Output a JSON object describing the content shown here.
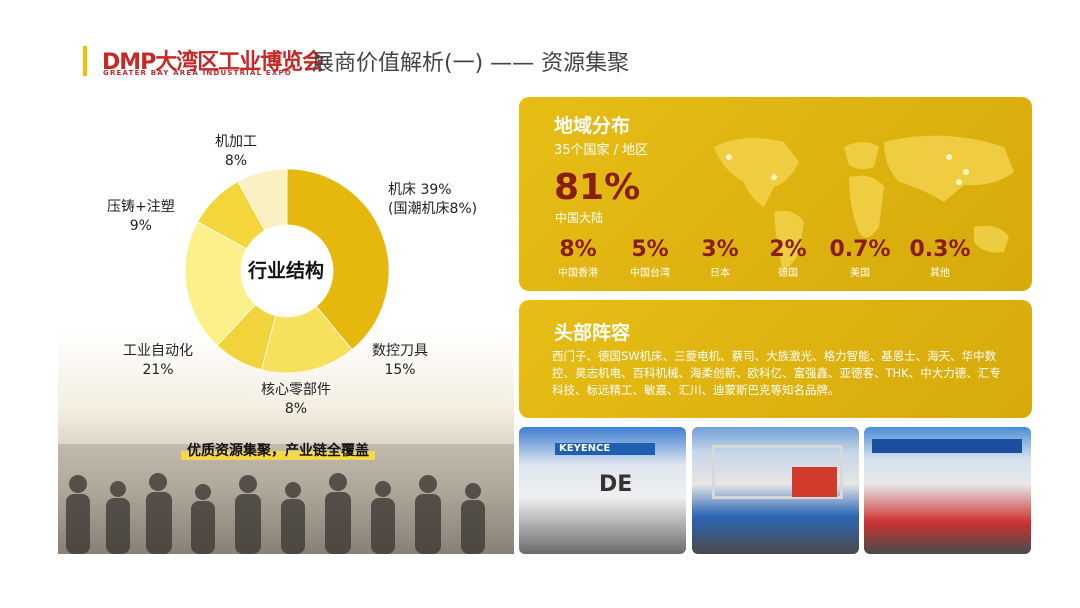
{
  "header": {
    "logo_main": "DMP大湾区工业博览会",
    "logo_sub": "GREATER BAY AREA INDUSTRIAL EXPO",
    "title": "展商价值解析(一) —— 资源集聚"
  },
  "industry": {
    "center_label": "行业结构",
    "labels": {
      "machining": {
        "name": "机加工",
        "pct": "8%"
      },
      "machine_tools": {
        "name": "机床 39%",
        "note": "(国潮机床8%)"
      },
      "die_casting": {
        "name": "压铸+注塑",
        "pct": "9%"
      },
      "cnc_tools": {
        "name": "数控刀具",
        "pct": "15%"
      },
      "automation": {
        "name": "工业自动化",
        "pct": "21%"
      },
      "components": {
        "name": "核心零部件",
        "pct": "8%"
      }
    },
    "tagline": "优质资源集聚，产业链全覆盖"
  },
  "chart_data": {
    "type": "pie",
    "categories": [
      "机床",
      "数控刀具",
      "核心零部件",
      "工业自动化",
      "压铸+注塑",
      "机加工"
    ],
    "values": [
      39,
      15,
      8,
      21,
      9,
      8
    ],
    "colors": [
      "#e6b70c",
      "#f7e15c",
      "#f1d43c",
      "#fcf08a",
      "#f5d63a",
      "#fbf0c2"
    ],
    "title": "行业结构"
  },
  "geo": {
    "title": "地域分布",
    "subtitle": "35个国家 / 地区",
    "main_pct": "81%",
    "main_label": "中国大陆",
    "stats": [
      {
        "value": "8%",
        "label": "中国香港"
      },
      {
        "value": "5%",
        "label": "中国台湾"
      },
      {
        "value": "3%",
        "label": "日本"
      },
      {
        "value": "2%",
        "label": "德国"
      },
      {
        "value": "0.7%",
        "label": "美国"
      },
      {
        "value": "0.3%",
        "label": "其他"
      }
    ]
  },
  "brands": {
    "title": "头部阵容",
    "text": "西门子、德国SW机床、三菱电机、蔡司、大族激光、格力智能、基恩士、海天、华中数控、昊志机电、百科机械、海柔创新、欧科亿、富强鑫、亚德客、THK、中大力德、汇专科技、标远精工、敏嘉、汇川、迪蒙斯巴克等知名品牌。"
  },
  "photos": {
    "photo1_sign": "KEYENCE",
    "photo1_letters": "DE"
  },
  "colors": {
    "accent": "#f2c200",
    "card": "#e2b612",
    "highlight": "#8a1d12"
  }
}
